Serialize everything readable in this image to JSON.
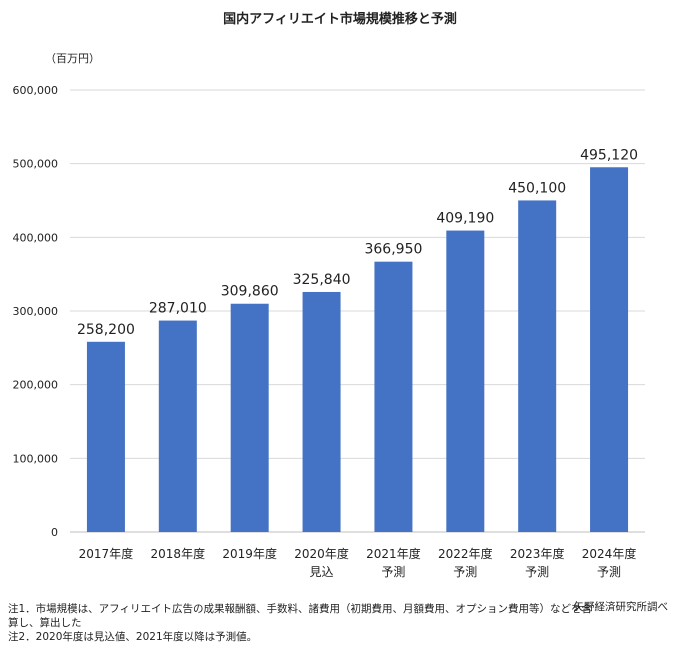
{
  "chart_data": {
    "type": "bar",
    "title": "国内アフィリエイト市場規模推移と予測",
    "unit_label": "（百万円）",
    "categories": [
      [
        "2017年度"
      ],
      [
        "2018年度"
      ],
      [
        "2019年度"
      ],
      [
        "2020年度",
        "見込"
      ],
      [
        "2021年度",
        "予測"
      ],
      [
        "2022年度",
        "予測"
      ],
      [
        "2023年度",
        "予測"
      ],
      [
        "2024年度",
        "予測"
      ]
    ],
    "values": [
      258200,
      287010,
      309860,
      325840,
      366950,
      409190,
      450100,
      495120
    ],
    "value_labels": [
      "258,200",
      "287,010",
      "309,860",
      "325,840",
      "366,950",
      "409,190",
      "450,100",
      "495,120"
    ],
    "ylim": [
      0,
      600000
    ],
    "yticks": [
      0,
      100000,
      200000,
      300000,
      400000,
      500000,
      600000
    ],
    "ytick_labels": [
      "0",
      "100,000",
      "200,000",
      "300,000",
      "400,000",
      "500,000",
      "600,000"
    ],
    "grid": true,
    "bar_color": "#4472C4"
  },
  "source": "矢野経済研究所調べ",
  "notes": [
    "注1．市場規模は、アフィリエイト広告の成果報酬額、手数料、諸費用（初期費用、月額費用、オプション費用等）などを合",
    "算し、算出した",
    "注2．2020年度は見込値、2021年度以降は予測値。"
  ]
}
